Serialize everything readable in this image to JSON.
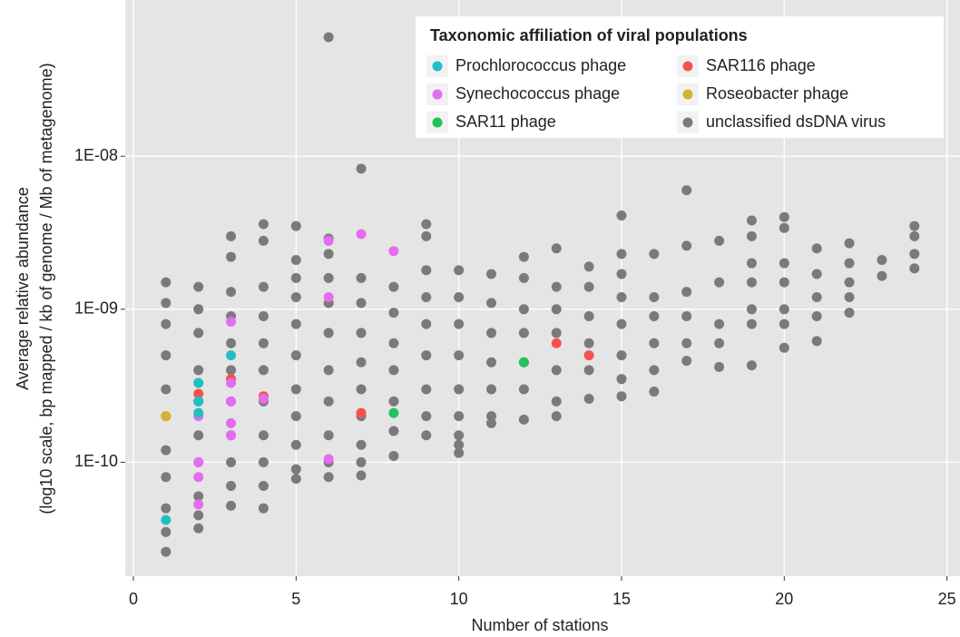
{
  "chart_data": {
    "type": "scatter",
    "xlabel": "Number of stations",
    "ylabel": [
      "Average relative abundance",
      "(log10 scale, bp mapped / kb of genome / Mb of metagenome)"
    ],
    "xlim": [
      -0.25,
      25.4
    ],
    "xticks": [
      0,
      5,
      10,
      15,
      20,
      25
    ],
    "ylim": [
      1.8e-11,
      1.05e-07
    ],
    "log_y": true,
    "yticks": [
      {
        "value": 1e-10,
        "label": "1E-10"
      },
      {
        "value": 1e-09,
        "label": "1E-09"
      },
      {
        "value": 1e-08,
        "label": "1E-08"
      }
    ],
    "grid": true,
    "legend_title": "Taxonomic affiliation of viral populations",
    "legend_position": "top-right",
    "series": [
      {
        "name": "Prochlorococcus phage",
        "color": "#1fbfc4",
        "x": [
          1,
          2,
          2,
          2,
          3
        ],
        "values": [
          4.2e-11,
          3.3e-10,
          2.5e-10,
          2.1e-10,
          5e-10
        ]
      },
      {
        "name": "Synechococcus phage",
        "color": "#e46cf2",
        "x": [
          2,
          2,
          2,
          2,
          3,
          3,
          3,
          3,
          3,
          4,
          6,
          6,
          6,
          7,
          8
        ],
        "values": [
          2e-10,
          1e-10,
          8e-11,
          5.3e-11,
          8.3e-10,
          3.3e-10,
          2.5e-10,
          1.8e-10,
          1.5e-10,
          2.6e-10,
          2.8e-09,
          1.2e-09,
          1.05e-10,
          3.1e-09,
          2.4e-09
        ]
      },
      {
        "name": "SAR11 phage",
        "color": "#21c35b",
        "x": [
          8,
          12
        ],
        "values": [
          2.1e-10,
          4.5e-10
        ]
      },
      {
        "name": "SAR116 phage",
        "color": "#f5524c",
        "x": [
          2,
          3,
          4,
          7,
          13,
          14
        ],
        "values": [
          2.8e-10,
          3.5e-10,
          2.7e-10,
          2.1e-10,
          6e-10,
          5e-10
        ]
      },
      {
        "name": "Roseobacter phage",
        "color": "#d2b431",
        "x": [
          1
        ],
        "values": [
          2e-10
        ]
      },
      {
        "name": "unclassified dsDNA virus",
        "color": "#7a7a7a",
        "x": [
          1,
          1,
          1,
          1,
          1,
          1,
          1,
          1,
          1,
          1,
          1,
          2,
          2,
          2,
          2,
          2,
          2,
          2,
          2,
          2,
          2,
          3,
          3,
          3,
          3,
          3,
          3,
          3,
          3,
          3,
          3,
          3,
          4,
          4,
          4,
          4,
          4,
          4,
          4,
          4,
          4,
          4,
          4,
          5,
          5,
          5,
          5,
          5,
          5,
          5,
          5,
          5,
          5,
          5,
          6,
          6,
          6,
          6,
          6,
          6,
          6,
          6,
          6,
          6,
          6,
          7,
          7,
          7,
          7,
          7,
          7,
          7,
          7,
          7,
          7,
          8,
          8,
          8,
          8,
          8,
          8,
          8,
          9,
          9,
          9,
          9,
          9,
          9,
          9,
          9,
          9,
          10,
          10,
          10,
          10,
          10,
          10,
          10,
          10,
          10,
          11,
          11,
          11,
          11,
          11,
          11,
          11,
          12,
          12,
          12,
          12,
          12,
          12,
          12,
          13,
          13,
          13,
          13,
          13,
          13,
          13,
          14,
          14,
          14,
          14,
          14,
          14,
          15,
          15,
          15,
          15,
          15,
          15,
          15,
          15,
          16,
          16,
          16,
          16,
          16,
          16,
          17,
          17,
          17,
          17,
          17,
          17,
          18,
          18,
          18,
          18,
          18,
          19,
          19,
          19,
          19,
          19,
          19,
          19,
          20,
          20,
          20,
          20,
          20,
          20,
          20,
          21,
          21,
          21,
          21,
          21,
          22,
          22,
          22,
          22,
          22,
          23,
          23,
          24,
          24,
          24,
          24
        ],
        "values": [
          1.5e-09,
          1.1e-09,
          8e-10,
          5e-10,
          3e-10,
          2e-10,
          1.2e-10,
          8e-11,
          5e-11,
          3.5e-11,
          2.6e-11,
          1.4e-09,
          1e-09,
          7e-10,
          4e-10,
          2.5e-10,
          1.5e-10,
          1e-10,
          6e-11,
          4.5e-11,
          3.7e-11,
          3e-09,
          2.2e-09,
          1.3e-09,
          9e-10,
          6e-10,
          4e-10,
          2.5e-10,
          1.5e-10,
          1e-10,
          7e-11,
          5.2e-11,
          3.6e-09,
          2.8e-09,
          1.4e-09,
          9e-10,
          6e-10,
          4e-10,
          2.5e-10,
          1.5e-10,
          1e-10,
          7e-11,
          5e-11,
          3.5e-09,
          2.1e-09,
          1.6e-09,
          1.2e-09,
          8e-10,
          5e-10,
          3e-10,
          2e-10,
          1.3e-10,
          9e-11,
          7.8e-11,
          6e-08,
          2.9e-09,
          2.3e-09,
          1.6e-09,
          1.1e-09,
          7e-10,
          4e-10,
          2.5e-10,
          1.5e-10,
          1e-10,
          8e-11,
          8.3e-09,
          1.6e-09,
          1.1e-09,
          7e-10,
          4.5e-10,
          3e-10,
          2e-10,
          1.3e-10,
          1e-10,
          8.2e-11,
          1.4e-09,
          9.5e-10,
          6e-10,
          4e-10,
          2.5e-10,
          1.6e-10,
          1.1e-10,
          3.6e-09,
          3e-09,
          1.8e-09,
          1.2e-09,
          8e-10,
          5e-10,
          3e-10,
          2e-10,
          1.5e-10,
          1.8e-09,
          1.2e-09,
          8e-10,
          5e-10,
          3e-10,
          2e-10,
          1.5e-10,
          1.3e-10,
          1.15e-10,
          1.7e-09,
          1.1e-09,
          7e-10,
          4.5e-10,
          3e-10,
          2e-10,
          1.8e-10,
          2.2e-09,
          1.6e-09,
          1e-09,
          7e-10,
          4.5e-10,
          3e-10,
          1.9e-10,
          2.5e-09,
          1.4e-09,
          1e-09,
          7e-10,
          4e-10,
          2.5e-10,
          2e-10,
          1.9e-09,
          1.4e-09,
          9e-10,
          6e-10,
          4e-10,
          2.6e-10,
          4.1e-09,
          2.3e-09,
          1.7e-09,
          1.2e-09,
          8e-10,
          5e-10,
          3.5e-10,
          2.7e-10,
          2.3e-09,
          1.2e-09,
          9e-10,
          6e-10,
          4e-10,
          2.9e-10,
          6e-09,
          2.6e-09,
          1.3e-09,
          9e-10,
          6e-10,
          4.6e-10,
          2.8e-09,
          1.5e-09,
          8e-10,
          6e-10,
          4.2e-10,
          3.8e-09,
          3e-09,
          2e-09,
          1.5e-09,
          1e-09,
          8e-10,
          4.3e-10,
          4e-09,
          3.4e-09,
          2e-09,
          1.5e-09,
          1e-09,
          8e-10,
          5.6e-10,
          2.5e-09,
          1.7e-09,
          1.2e-09,
          9e-10,
          6.2e-10,
          2.7e-09,
          2e-09,
          1.5e-09,
          1.2e-09,
          9.5e-10,
          2.1e-09,
          1.65e-09,
          3.5e-09,
          3e-09,
          2.3e-09,
          1.85e-09
        ]
      }
    ]
  }
}
